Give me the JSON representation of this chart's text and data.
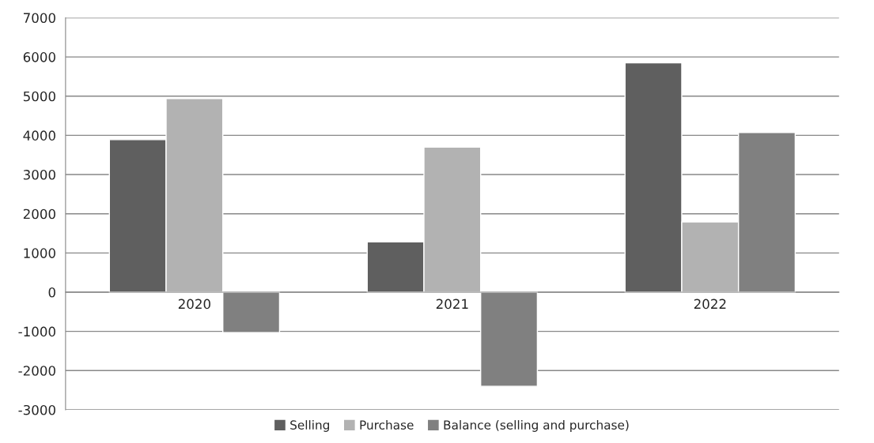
{
  "chart_data": {
    "type": "bar",
    "categories": [
      "2020",
      "2021",
      "2022"
    ],
    "series": [
      {
        "name": "Selling",
        "color": "#5f5f5f",
        "values": [
          3890,
          1280,
          5850
        ]
      },
      {
        "name": "Purchase",
        "color": "#b2b2b2",
        "values": [
          4940,
          3700,
          1790
        ]
      },
      {
        "name": "Balance (selling and purchase)",
        "color": "#808080",
        "values": [
          -1030,
          -2400,
          4070
        ]
      }
    ],
    "ylim": [
      -3000,
      7000
    ],
    "yticks": [
      -3000,
      -2000,
      -1000,
      0,
      1000,
      2000,
      3000,
      4000,
      5000,
      6000,
      7000
    ],
    "grid": "y",
    "legend": "bottom"
  }
}
